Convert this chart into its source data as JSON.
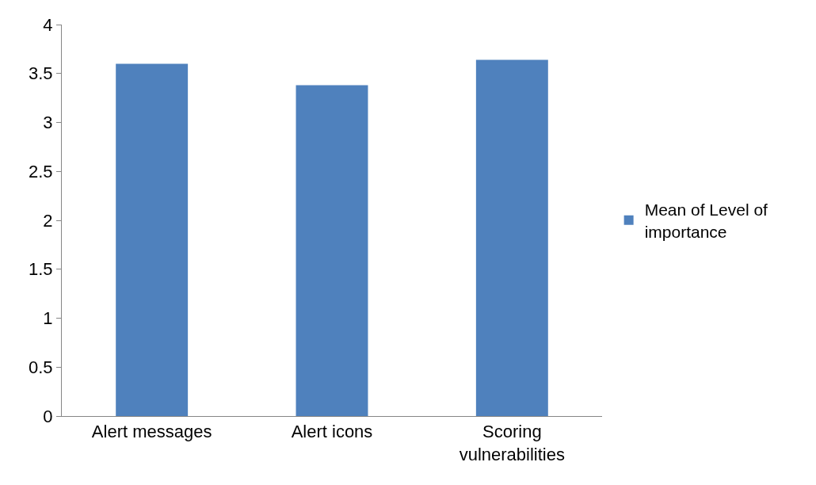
{
  "chart_data": {
    "type": "bar",
    "categories": [
      "Alert messages",
      "Alert icons",
      "Scoring vulnerabilities"
    ],
    "series": [
      {
        "name": "Mean of Level of importance",
        "color": "#4f81bd",
        "values": [
          3.6,
          3.38,
          3.64
        ]
      }
    ],
    "ylim": [
      0,
      4
    ],
    "yticks": [
      0,
      0.5,
      1,
      1.5,
      2,
      2.5,
      3,
      3.5,
      4
    ],
    "legend": "right"
  }
}
